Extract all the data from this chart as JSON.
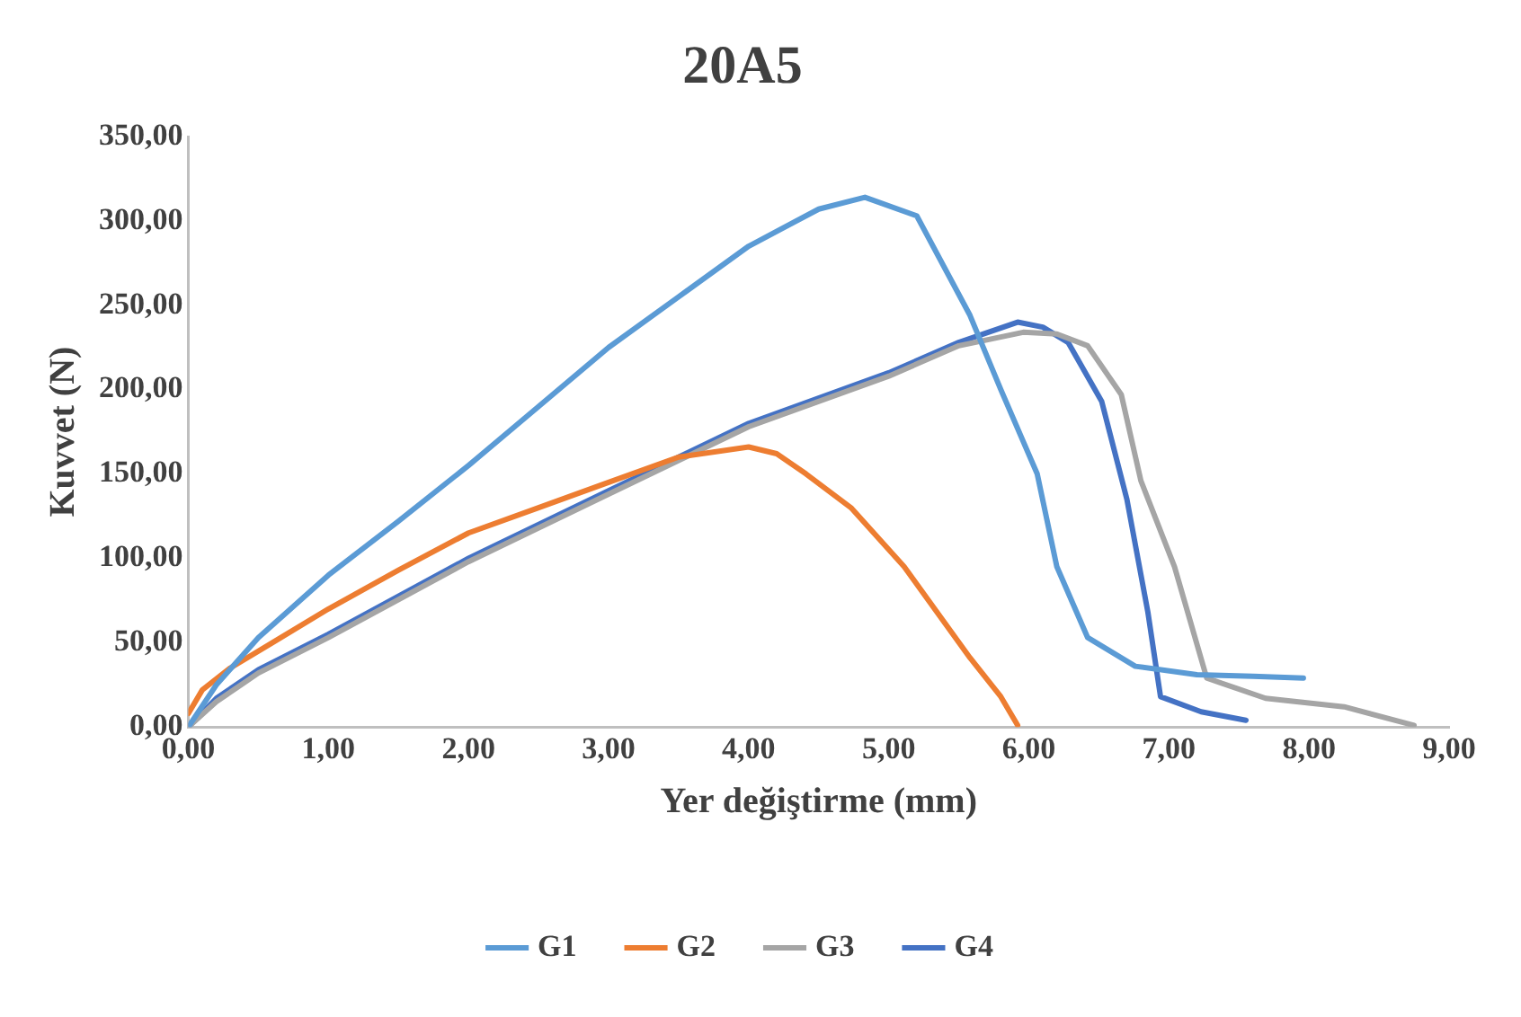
{
  "chart_data": {
    "type": "line",
    "title": "20A5",
    "xlabel": "Yer değiştirme (mm)",
    "ylabel": "Kuvvet (N)",
    "xlim": [
      0,
      9
    ],
    "xticks": [
      {
        "value": 0,
        "label": "0,00"
      },
      {
        "value": 1,
        "label": "1,00"
      },
      {
        "value": 2,
        "label": "2,00"
      },
      {
        "value": 3,
        "label": "3,00"
      },
      {
        "value": 4,
        "label": "4,00"
      },
      {
        "value": 5,
        "label": "5,00"
      },
      {
        "value": 6,
        "label": "6,00"
      },
      {
        "value": 7,
        "label": "7,00"
      },
      {
        "value": 8,
        "label": "8,00"
      },
      {
        "value": 9,
        "label": "9,00"
      }
    ],
    "ylim": [
      0,
      350
    ],
    "yticks": [
      {
        "value": 0,
        "label": "0,00"
      },
      {
        "value": 50,
        "label": "50,00"
      },
      {
        "value": 100,
        "label": "100,00"
      },
      {
        "value": 150,
        "label": "150,00"
      },
      {
        "value": 200,
        "label": "200,00"
      },
      {
        "value": 250,
        "label": "250,00"
      },
      {
        "value": 300,
        "label": "300,00"
      },
      {
        "value": 350,
        "label": "350,00"
      }
    ],
    "grid": false,
    "legend": "bottom",
    "marker": "none",
    "line_style": "solid",
    "series": [
      {
        "name": "G1",
        "color": "#5b9bd5",
        "x": [
          0,
          0.2,
          0.5,
          1,
          1.5,
          2,
          2.5,
          3,
          3.5,
          4,
          4.5,
          4.83,
          5.2,
          5.58,
          5.8,
          6.06,
          6.2,
          6.42,
          6.76,
          7.2,
          7.6,
          7.96
        ],
        "values": [
          0,
          25,
          53,
          90,
          122,
          155,
          190,
          225,
          255,
          285,
          307,
          314,
          303,
          244,
          200,
          150,
          95,
          53,
          36,
          31,
          30,
          29
        ]
      },
      {
        "name": "G2",
        "color": "#ed7d31",
        "x": [
          0,
          0.1,
          0.3,
          0.6,
          1,
          1.5,
          2,
          2.5,
          3,
          3.5,
          4,
          4.2,
          4.41,
          4.73,
          5.11,
          5.58,
          5.8,
          5.92
        ],
        "values": [
          8,
          22,
          35,
          50,
          70,
          93,
          115,
          130,
          145,
          160,
          166,
          162,
          150,
          130,
          95,
          41,
          18,
          1
        ]
      },
      {
        "name": "G3",
        "color": "#a5a5a5",
        "x": [
          0,
          0.2,
          0.5,
          1,
          2,
          3,
          4,
          5,
          5.5,
          5.96,
          6.2,
          6.42,
          6.66,
          6.8,
          7.04,
          7.27,
          7.69,
          8.25,
          8.75
        ],
        "values": [
          0,
          15,
          32,
          53,
          98,
          138,
          178,
          208,
          226,
          234,
          233,
          226,
          197,
          146,
          95,
          29,
          17,
          12,
          1
        ]
      },
      {
        "name": "G4",
        "color": "#4472c4",
        "x": [
          0,
          0.2,
          0.5,
          1,
          2,
          3,
          4,
          5,
          5.5,
          5.92,
          6.1,
          6.28,
          6.52,
          6.7,
          6.85,
          6.94,
          7.23,
          7.55
        ],
        "values": [
          0,
          17,
          34,
          55,
          100,
          140,
          180,
          210,
          228,
          240,
          237,
          228,
          193,
          135,
          68,
          18,
          9,
          4
        ]
      }
    ]
  }
}
